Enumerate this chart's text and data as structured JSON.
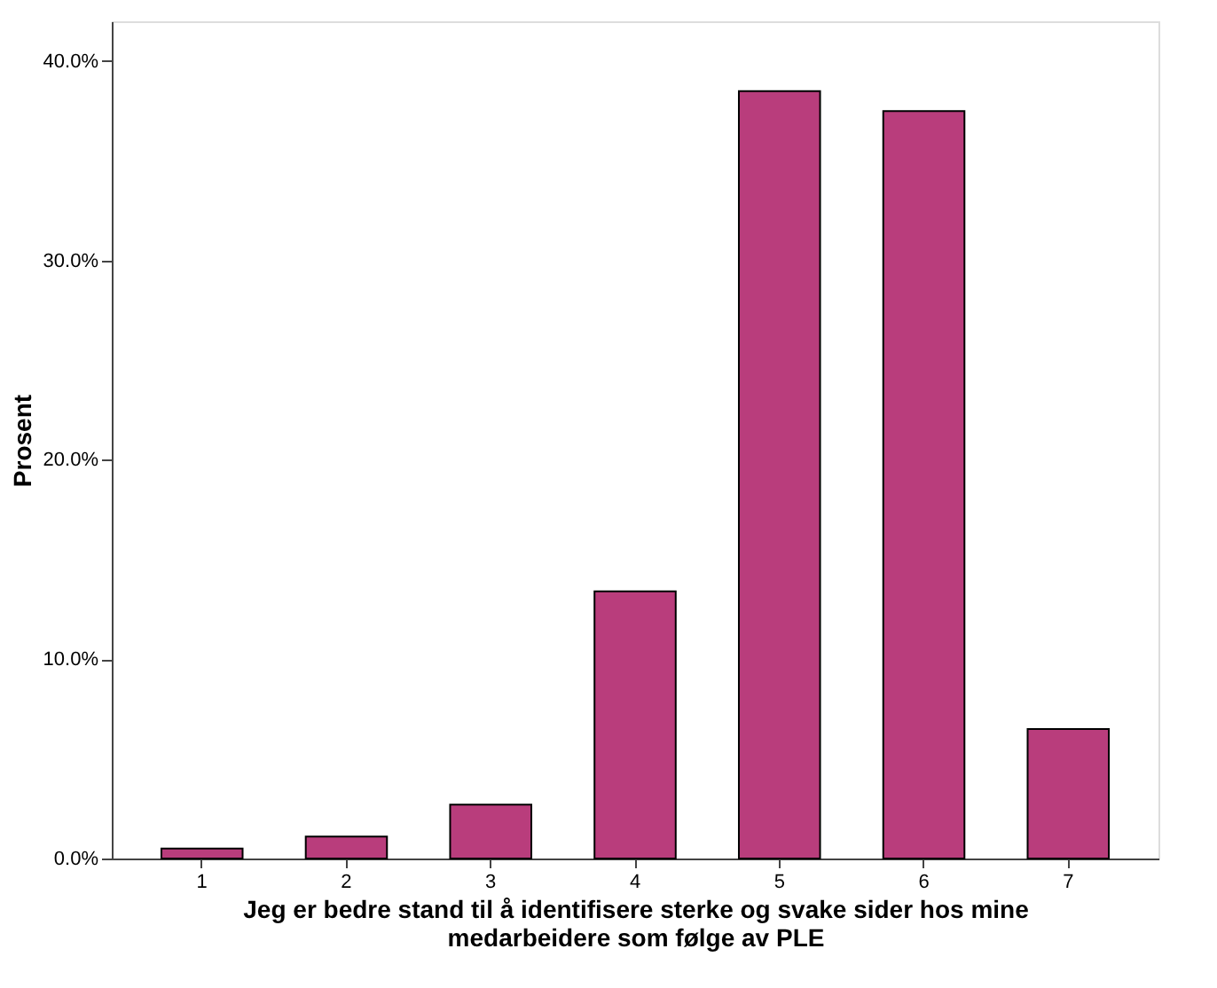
{
  "chart_data": {
    "type": "bar",
    "xlabel": "Jeg er bedre stand til å identifisere sterke og svake sider hos mine medarbeidere som følge av PLE",
    "ylabel": "Prosent",
    "categories": [
      "1",
      "2",
      "3",
      "4",
      "5",
      "6",
      "7"
    ],
    "values": [
      0.5,
      1.1,
      2.7,
      13.4,
      38.5,
      37.5,
      6.5
    ],
    "color": "#b93d7c",
    "ylim": [
      0,
      42
    ],
    "yticks": [
      {
        "value": 0,
        "label": "0.0%"
      },
      {
        "value": 10,
        "label": "10.0%"
      },
      {
        "value": 20,
        "label": "20.0%"
      },
      {
        "value": 30,
        "label": "30.0%"
      },
      {
        "value": 40,
        "label": "40.0%"
      }
    ],
    "grid": false
  }
}
